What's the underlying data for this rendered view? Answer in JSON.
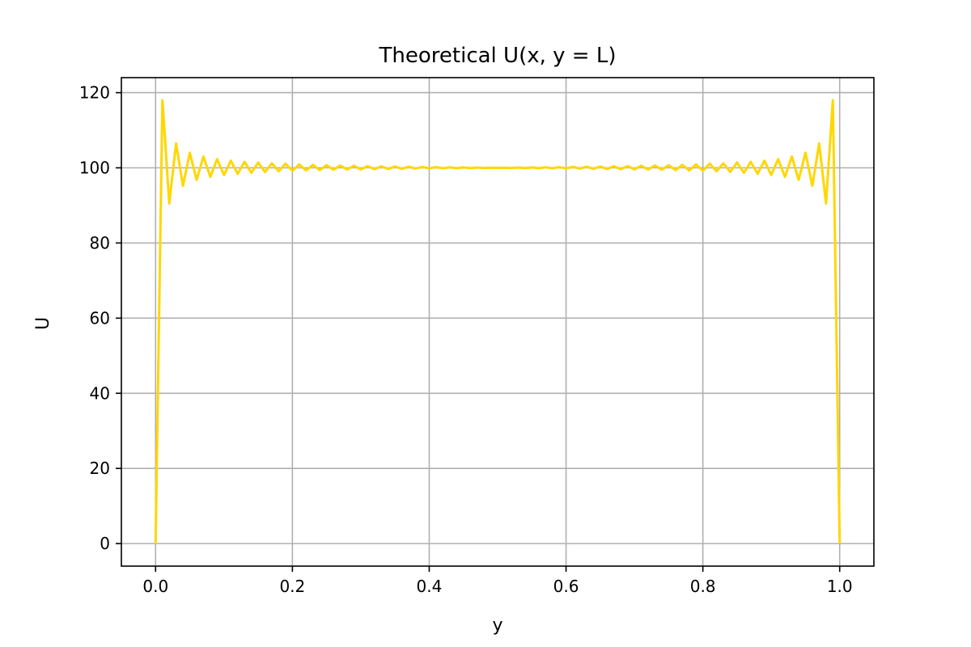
{
  "chart_data": {
    "type": "line",
    "title": "Theoretical U(x, y = L)",
    "xlabel": "y",
    "ylabel": "U",
    "xlim": [
      -0.05,
      1.05
    ],
    "ylim": [
      -6,
      124
    ],
    "xticks": [
      0.0,
      0.2,
      0.4,
      0.6,
      0.8,
      1.0
    ],
    "xtick_labels": [
      "0.0",
      "0.2",
      "0.4",
      "0.6",
      "0.8",
      "1.0"
    ],
    "yticks": [
      0,
      20,
      40,
      60,
      80,
      100,
      120
    ],
    "ytick_labels": [
      "0",
      "20",
      "40",
      "60",
      "80",
      "100",
      "120"
    ],
    "grid": true,
    "colors": {
      "line": "#ffd700",
      "grid": "#b0b0b0",
      "axes": "#000000"
    },
    "series": [
      {
        "x": [
          0.0,
          0.01,
          0.02,
          0.03,
          0.04,
          0.05,
          0.06,
          0.07,
          0.08,
          0.09,
          0.1,
          0.11,
          0.12,
          0.13,
          0.14,
          0.15,
          0.16,
          0.17,
          0.18,
          0.19,
          0.2,
          0.21,
          0.22,
          0.23,
          0.24,
          0.25,
          0.26,
          0.27,
          0.28,
          0.29,
          0.3,
          0.31,
          0.32,
          0.33,
          0.34,
          0.35,
          0.36,
          0.37,
          0.38,
          0.39,
          0.4,
          0.41,
          0.42,
          0.43,
          0.44,
          0.45,
          0.46,
          0.47,
          0.48,
          0.49,
          0.5,
          0.51,
          0.52,
          0.53,
          0.54,
          0.55,
          0.56,
          0.57,
          0.58,
          0.59,
          0.6,
          0.61,
          0.62,
          0.63,
          0.64,
          0.65,
          0.66,
          0.67,
          0.68,
          0.69,
          0.7,
          0.71,
          0.72,
          0.73,
          0.74,
          0.75,
          0.76,
          0.77,
          0.78,
          0.79,
          0.8,
          0.81,
          0.82,
          0.83,
          0.84,
          0.85,
          0.86,
          0.87,
          0.88,
          0.89,
          0.9,
          0.91,
          0.92,
          0.93,
          0.94,
          0.95,
          0.96,
          0.97,
          0.98,
          0.99,
          1.0
        ],
        "values": [
          0,
          118,
          90.5,
          106.5,
          95.2,
          104,
          96.8,
          103,
          97.6,
          102.3,
          98.1,
          101.9,
          98.4,
          101.6,
          98.7,
          101.4,
          98.9,
          101.2,
          99.1,
          101.1,
          99.2,
          100.9,
          99.3,
          100.8,
          99.4,
          100.7,
          99.5,
          100.6,
          99.55,
          100.55,
          99.6,
          100.45,
          99.65,
          100.4,
          99.7,
          100.35,
          99.75,
          100.3,
          99.8,
          100.25,
          99.85,
          100.2,
          99.88,
          100.15,
          99.9,
          100.1,
          99.93,
          100.07,
          99.96,
          100.03,
          100,
          100.03,
          99.96,
          100.07,
          99.93,
          100.1,
          99.9,
          100.15,
          99.88,
          100.2,
          99.85,
          100.25,
          99.8,
          100.3,
          99.75,
          100.35,
          99.7,
          100.4,
          99.65,
          100.45,
          99.6,
          100.55,
          99.55,
          100.6,
          99.5,
          100.7,
          99.4,
          100.8,
          99.3,
          100.9,
          99.2,
          101.1,
          99.1,
          101.2,
          98.9,
          101.4,
          98.7,
          101.6,
          98.4,
          101.9,
          98.1,
          102.3,
          97.6,
          103,
          96.8,
          104,
          95.2,
          106.5,
          90.5,
          118,
          0
        ]
      }
    ]
  }
}
